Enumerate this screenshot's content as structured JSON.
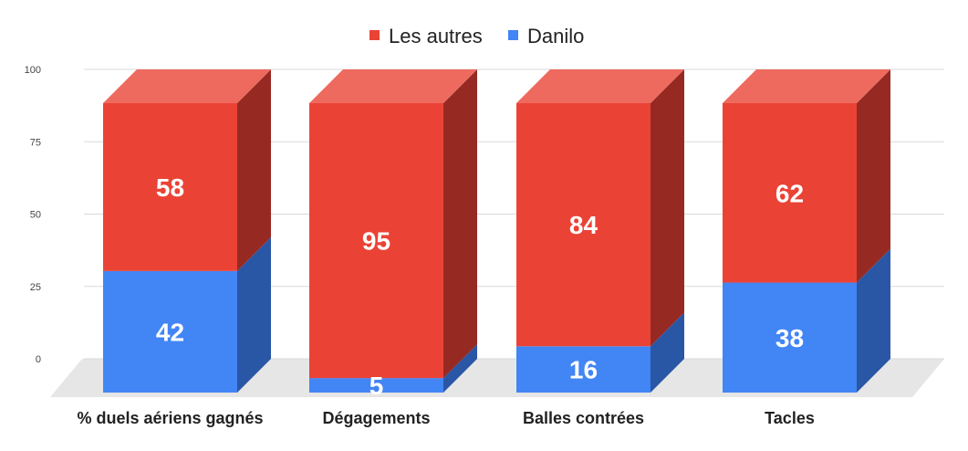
{
  "chart_data": {
    "type": "bar",
    "stacked": true,
    "style": "3d",
    "categories": [
      "% duels aériens gagnés",
      "Dégagements",
      "Balles contrées",
      "Tacles"
    ],
    "series": [
      {
        "name": "Danilo",
        "values": [
          42,
          5,
          16,
          38
        ],
        "color": "#4285f4",
        "side_color": "#2a56a6"
      },
      {
        "name": "Les autres",
        "values": [
          58,
          95,
          84,
          62
        ],
        "color": "#ea4335",
        "side_color": "#962a23",
        "top_color": "#ee6a5f"
      }
    ],
    "legend": {
      "position": "top",
      "order": [
        "Les autres",
        "Danilo"
      ]
    },
    "yticks": [
      "0",
      "25",
      "50",
      "75",
      "100"
    ],
    "ylim": [
      0,
      100
    ],
    "grid": true
  }
}
